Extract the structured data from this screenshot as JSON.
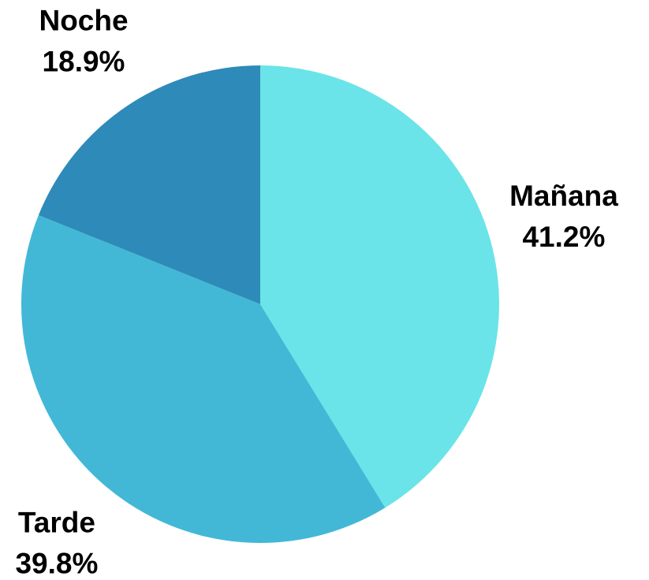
{
  "chart_data": {
    "type": "pie",
    "categories": [
      "Mañana",
      "Tarde",
      "Noche"
    ],
    "values": [
      41.2,
      39.8,
      18.9
    ],
    "value_labels": [
      "41.2%",
      "39.8%",
      "18.9%"
    ],
    "colors": [
      "#6ae4e8",
      "#42b8d6",
      "#2e8ab8"
    ]
  }
}
